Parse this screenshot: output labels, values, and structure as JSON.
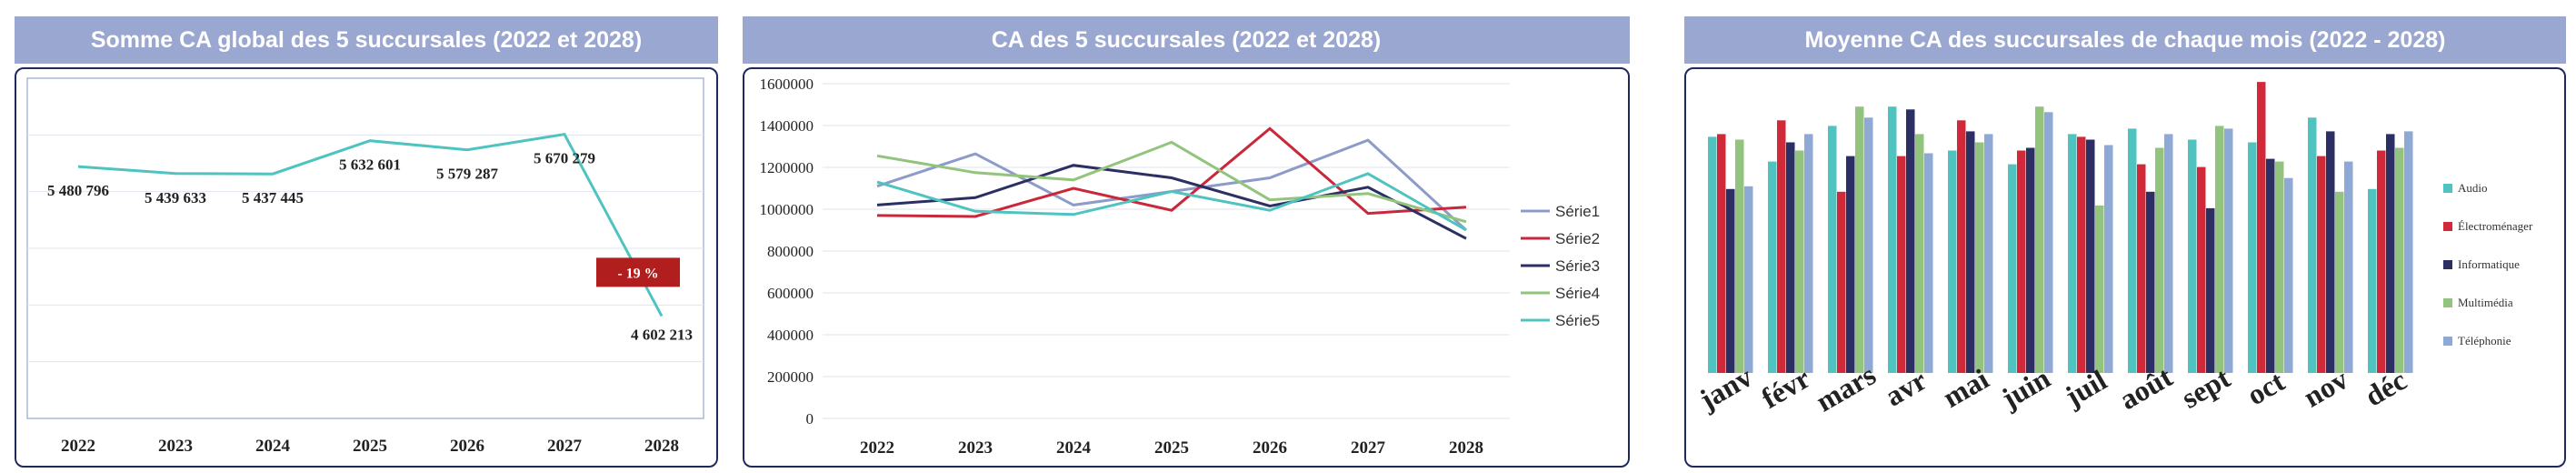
{
  "charts": [
    {
      "title": "Somme CA global des 5 succursales (2022 et 2028)",
      "chart_data": {
        "type": "line",
        "categories": [
          "2022",
          "2023",
          "2024",
          "2025",
          "2026",
          "2027",
          "2028"
        ],
        "values": [
          5480796,
          5439633,
          5437445,
          5632601,
          5579287,
          5670279,
          4602213
        ],
        "data_labels": [
          "5 480 796",
          "5 439 633",
          "5 437 445",
          "5 632 601",
          "5 579 287",
          "5 670 279",
          "4 602 213"
        ],
        "annotation": "- 19 %",
        "line_color": "#4fc3c0",
        "annotation_color": "#b01e1e",
        "grid": true
      }
    },
    {
      "title": "CA des 5 succursales (2022 et 2028)",
      "chart_data": {
        "type": "line",
        "categories": [
          "2022",
          "2023",
          "2024",
          "2025",
          "2026",
          "2027",
          "2028"
        ],
        "ylim": [
          0,
          1600000
        ],
        "yticks": [
          "0",
          "200000",
          "400000",
          "600000",
          "800000",
          "1000000",
          "1200000",
          "1400000",
          "1600000"
        ],
        "legend_position": "right",
        "grid": true,
        "series": [
          {
            "name": "Série1",
            "color": "#8c9bc8",
            "values": [
              1110000,
              1265000,
              1020000,
              1085000,
              1150000,
              1330000,
              900000
            ]
          },
          {
            "name": "Série2",
            "color": "#c8283a",
            "values": [
              970000,
              965000,
              1100000,
              995000,
              1385000,
              980000,
              1010000
            ]
          },
          {
            "name": "Série3",
            "color": "#2b2f63",
            "values": [
              1020000,
              1055000,
              1210000,
              1150000,
              1015000,
              1105000,
              860000
            ]
          },
          {
            "name": "Série4",
            "color": "#93c47d",
            "values": [
              1255000,
              1175000,
              1140000,
              1320000,
              1045000,
              1075000,
              940000
            ]
          },
          {
            "name": "Série5",
            "color": "#4fc3c0",
            "values": [
              1130000,
              990000,
              975000,
              1085000,
              995000,
              1170000,
              900000
            ]
          }
        ]
      }
    },
    {
      "title": "Moyenne CA des succursales de chaque mois (2022 - 2028)",
      "chart_data": {
        "type": "bar",
        "categories": [
          "janv",
          "févr",
          "mars",
          "avr",
          "mai",
          "juin",
          "juil",
          "août",
          "sept",
          "oct",
          "nov",
          "déc"
        ],
        "legend_position": "right",
        "grid": false,
        "series": [
          {
            "name": "Audio",
            "color": "#4fc3c0",
            "values": [
              86,
              77,
              90,
              97,
              81,
              76,
              87,
              89,
              85,
              84,
              93,
              67
            ]
          },
          {
            "name": "Électroménager",
            "color": "#d1283a",
            "values": [
              87,
              92,
              66,
              79,
              92,
              81,
              86,
              76,
              75,
              106,
              79,
              81
            ]
          },
          {
            "name": "Informatique",
            "color": "#2b2f63",
            "values": [
              67,
              84,
              79,
              96,
              88,
              82,
              85,
              66,
              60,
              78,
              88,
              87
            ]
          },
          {
            "name": "Multimédia",
            "color": "#93c47d",
            "values": [
              85,
              81,
              97,
              87,
              84,
              97,
              61,
              82,
              90,
              77,
              66,
              82
            ]
          },
          {
            "name": "Téléphonie",
            "color": "#8fa9d6",
            "values": [
              68,
              87,
              93,
              80,
              87,
              95,
              83,
              87,
              89,
              71,
              77,
              88
            ]
          }
        ]
      }
    }
  ]
}
